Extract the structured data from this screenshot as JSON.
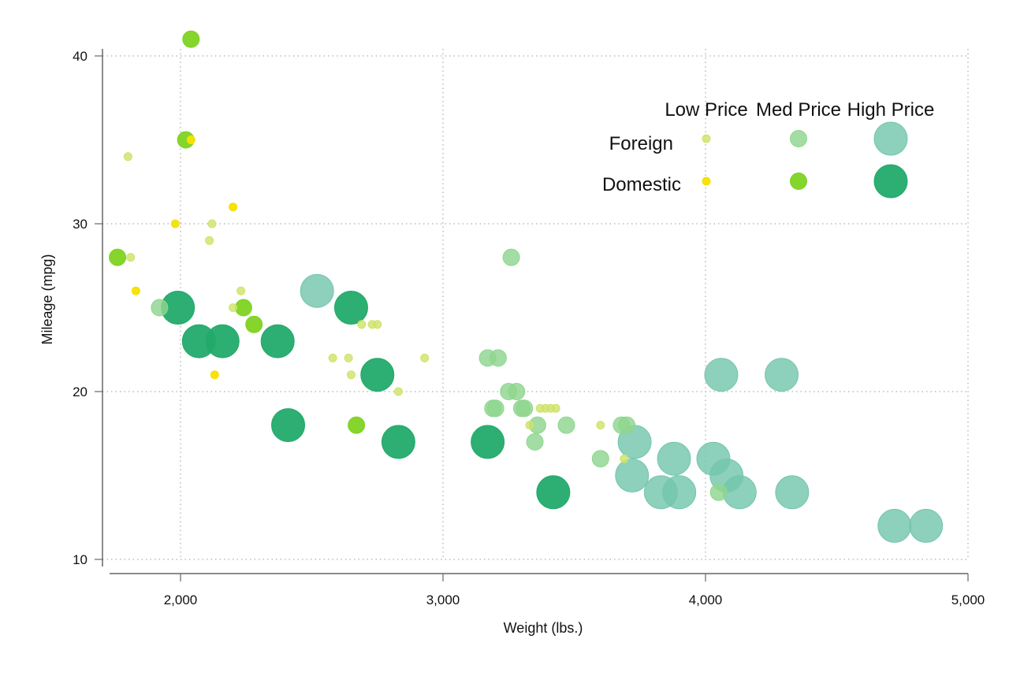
{
  "chart_data": {
    "type": "scatter",
    "subtype": "bubble",
    "title": "",
    "xlabel": "Weight (lbs.)",
    "ylabel": "Mileage (mpg)",
    "xlim": [
      1700,
      5000
    ],
    "ylim": [
      10,
      41
    ],
    "xticks": [
      2000,
      3000,
      4000,
      5000
    ],
    "xtick_labels": [
      "2,000",
      "3,000",
      "4,000",
      "5,000"
    ],
    "yticks": [
      10,
      20,
      30,
      40
    ],
    "ytick_labels": [
      "10",
      "20",
      "30",
      "40"
    ],
    "grid": true,
    "legend": {
      "placement": "top-right",
      "columns": [
        "Low Price",
        "Med Price",
        "High Price"
      ],
      "rows": [
        "Foreign",
        "Domestic"
      ]
    },
    "colors": {
      "Foreign": {
        "Low Price": "#cfe36a",
        "Med Price": "#8fd68f",
        "High Price": "#74c6ad"
      },
      "Domestic": {
        "Low Price": "#f5e000",
        "Med Price": "#7ed321",
        "High Price": "#22aa6a"
      }
    },
    "series": [
      {
        "name": "Foreign Low Price",
        "origin": "Foreign",
        "price": "Low Price",
        "points": [
          {
            "x": 1800,
            "y": 34
          },
          {
            "x": 1810,
            "y": 28
          },
          {
            "x": 2040,
            "y": 35
          },
          {
            "x": 2110,
            "y": 29
          },
          {
            "x": 2120,
            "y": 30
          },
          {
            "x": 2200,
            "y": 25
          },
          {
            "x": 2230,
            "y": 26
          },
          {
            "x": 2580,
            "y": 22
          },
          {
            "x": 2640,
            "y": 22
          },
          {
            "x": 2650,
            "y": 21
          },
          {
            "x": 2690,
            "y": 24
          },
          {
            "x": 2730,
            "y": 24
          },
          {
            "x": 2750,
            "y": 24
          },
          {
            "x": 2830,
            "y": 20
          },
          {
            "x": 2930,
            "y": 22
          },
          {
            "x": 3330,
            "y": 18
          },
          {
            "x": 3370,
            "y": 19
          },
          {
            "x": 3390,
            "y": 19
          },
          {
            "x": 3410,
            "y": 19
          },
          {
            "x": 3430,
            "y": 19
          },
          {
            "x": 3600,
            "y": 18
          },
          {
            "x": 3690,
            "y": 16
          }
        ]
      },
      {
        "name": "Foreign Med Price",
        "origin": "Foreign",
        "price": "Med Price",
        "points": [
          {
            "x": 1920,
            "y": 25
          },
          {
            "x": 3170,
            "y": 22
          },
          {
            "x": 3210,
            "y": 22
          },
          {
            "x": 3190,
            "y": 19
          },
          {
            "x": 3200,
            "y": 19
          },
          {
            "x": 3250,
            "y": 20
          },
          {
            "x": 3280,
            "y": 20
          },
          {
            "x": 3300,
            "y": 19
          },
          {
            "x": 3310,
            "y": 19
          },
          {
            "x": 3260,
            "y": 28
          },
          {
            "x": 3360,
            "y": 18
          },
          {
            "x": 3350,
            "y": 17
          },
          {
            "x": 3470,
            "y": 18
          },
          {
            "x": 3600,
            "y": 16
          },
          {
            "x": 3680,
            "y": 18
          },
          {
            "x": 3700,
            "y": 18
          },
          {
            "x": 4050,
            "y": 14
          }
        ]
      },
      {
        "name": "Foreign High Price",
        "origin": "Foreign",
        "price": "High Price",
        "points": [
          {
            "x": 2520,
            "y": 26
          },
          {
            "x": 4060,
            "y": 21
          },
          {
            "x": 4290,
            "y": 21
          },
          {
            "x": 3730,
            "y": 17
          },
          {
            "x": 3720,
            "y": 15
          },
          {
            "x": 3830,
            "y": 14
          },
          {
            "x": 3880,
            "y": 16
          },
          {
            "x": 3900,
            "y": 14
          },
          {
            "x": 4030,
            "y": 16
          },
          {
            "x": 4080,
            "y": 15
          },
          {
            "x": 4130,
            "y": 14
          },
          {
            "x": 4330,
            "y": 14
          },
          {
            "x": 4720,
            "y": 12
          },
          {
            "x": 4840,
            "y": 12
          }
        ]
      },
      {
        "name": "Domestic Low Price",
        "origin": "Domestic",
        "price": "Low Price",
        "points": [
          {
            "x": 1980,
            "y": 30
          },
          {
            "x": 1830,
            "y": 26
          },
          {
            "x": 2200,
            "y": 31
          },
          {
            "x": 2130,
            "y": 21
          },
          {
            "x": 2040,
            "y": 35
          }
        ]
      },
      {
        "name": "Domestic Med Price",
        "origin": "Domestic",
        "price": "Med Price",
        "points": [
          {
            "x": 2040,
            "y": 41
          },
          {
            "x": 2020,
            "y": 35
          },
          {
            "x": 1760,
            "y": 28
          },
          {
            "x": 2240,
            "y": 25
          },
          {
            "x": 2280,
            "y": 24
          },
          {
            "x": 2670,
            "y": 18
          }
        ]
      },
      {
        "name": "Domestic High Price",
        "origin": "Domestic",
        "price": "High Price",
        "points": [
          {
            "x": 1990,
            "y": 25
          },
          {
            "x": 2070,
            "y": 23
          },
          {
            "x": 2160,
            "y": 23
          },
          {
            "x": 2370,
            "y": 23
          },
          {
            "x": 2650,
            "y": 25
          },
          {
            "x": 2410,
            "y": 18
          },
          {
            "x": 2750,
            "y": 21
          },
          {
            "x": 2830,
            "y": 17
          },
          {
            "x": 3170,
            "y": 17
          },
          {
            "x": 3420,
            "y": 14
          }
        ]
      }
    ]
  }
}
